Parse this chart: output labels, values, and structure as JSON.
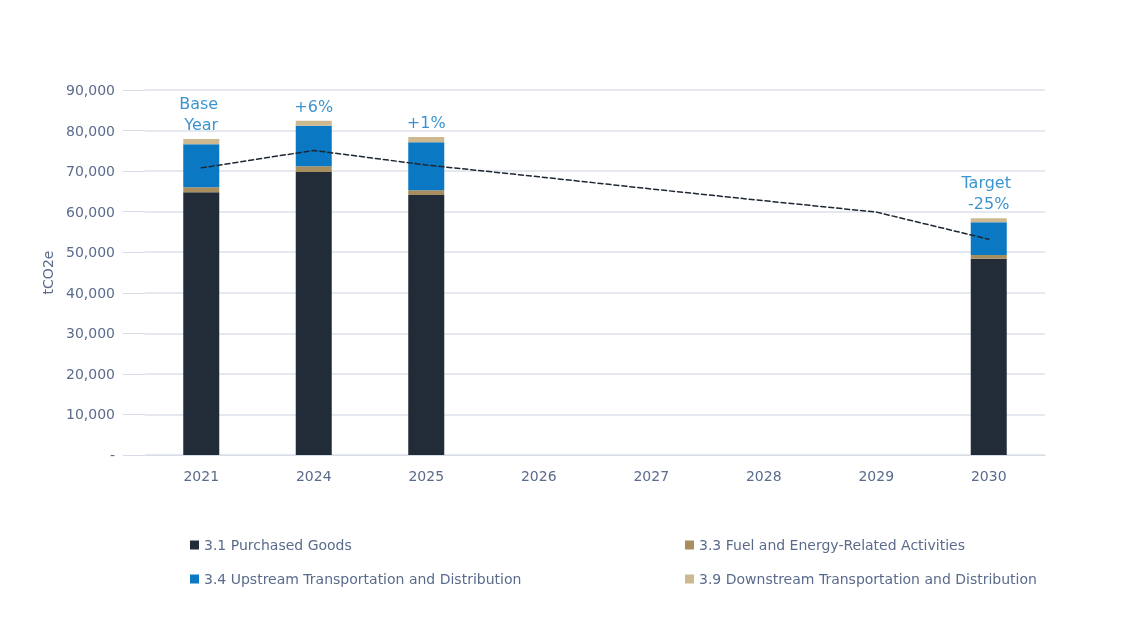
{
  "chart_data": {
    "type": "bar",
    "stacked": true,
    "ylabel": "tCO2e",
    "categories": [
      "2021",
      "2024",
      "2025",
      "2026",
      "2027",
      "2028",
      "2029",
      "2030"
    ],
    "series": [
      {
        "name": "3.1 Purchased Goods",
        "color": "#222b38",
        "values": [
          64800,
          69800,
          64100,
          null,
          null,
          null,
          null,
          48400
        ]
      },
      {
        "name": "3.3 Fuel and Energy-Related Activities",
        "color": "#a88d5e",
        "values": [
          1200,
          1400,
          1200,
          null,
          null,
          null,
          null,
          900
        ]
      },
      {
        "name": "3.4 Upstream Transportation and Distribution",
        "color": "#0a78c2",
        "values": [
          10600,
          10000,
          11800,
          null,
          null,
          null,
          null,
          8100
        ]
      },
      {
        "name": "3.9 Downstream Transportation and Distribution",
        "color": "#cdb88f",
        "values": [
          1300,
          1200,
          1300,
          null,
          null,
          null,
          null,
          1000
        ]
      },
      {
        "type": "line",
        "color": "#1f2733",
        "line_style": "dashed",
        "marker": "none",
        "values": [
          70800,
          75100,
          71500,
          68600,
          65600,
          62700,
          59900,
          53200
        ]
      }
    ],
    "annotations": [
      {
        "text": "Base Year",
        "x": "2021",
        "y": 77900
      },
      {
        "text": "+6%",
        "x": "2024",
        "y": 82400
      },
      {
        "text": "+1%",
        "x": "2025",
        "y": 78400
      },
      {
        "text": "Target -25%",
        "x": "2030",
        "y": 58400
      }
    ],
    "ylim": [
      0,
      90000
    ],
    "yticks": [
      {
        "value": 0,
        "label": "-"
      },
      {
        "value": 10000,
        "label": "10,000"
      },
      {
        "value": 20000,
        "label": "20,000"
      },
      {
        "value": 30000,
        "label": "30,000"
      },
      {
        "value": 40000,
        "label": "40,000"
      },
      {
        "value": 50000,
        "label": "50,000"
      },
      {
        "value": 60000,
        "label": "60,000"
      },
      {
        "value": 70000,
        "label": "70,000"
      },
      {
        "value": 80000,
        "label": "80,000"
      },
      {
        "value": 90000,
        "label": "90,000"
      }
    ],
    "grid": "y",
    "legend": "bottom"
  }
}
